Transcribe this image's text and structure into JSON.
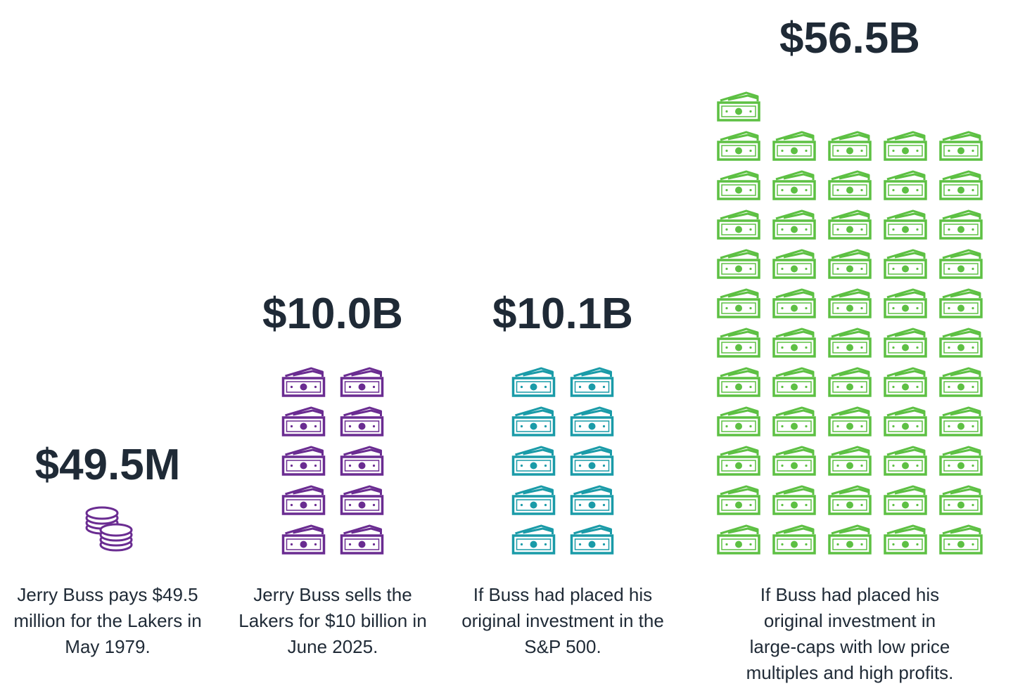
{
  "chart_data": {
    "type": "pictograph",
    "categories": [
      "Jerry Buss pays $49.5 million for the Lakers in May 1979.",
      "Jerry Buss sells the Lakers for $10 billion in June 2025.",
      "If Buss had placed his original investment in the S&P 500.",
      "If Buss had placed his original investment in large-caps with low price multiples and high profits."
    ],
    "values": [
      0.0495,
      10.0,
      10.1,
      56.5
    ],
    "value_labels": [
      "$49.5M",
      "$10.0B",
      "$10.1B",
      "$56.5B"
    ],
    "colors": [
      "#6a2c91",
      "#6a2c91",
      "#1a9ba8",
      "#5dc043"
    ]
  }
}
